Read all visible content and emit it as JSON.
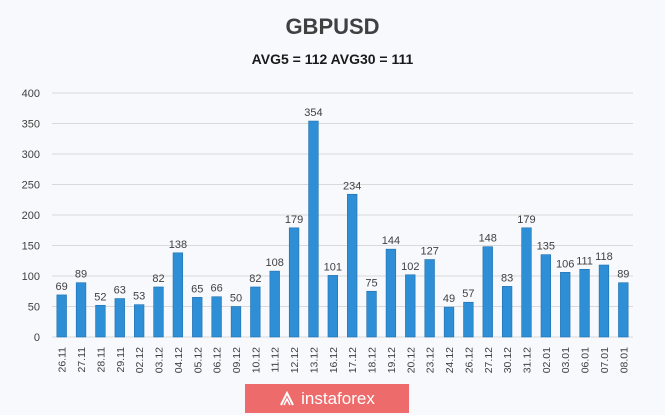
{
  "chart_data": {
    "type": "bar",
    "title": "GBPUSD",
    "subtitle": "AVG5 = 112 AVG30 = 111",
    "categories": [
      "26.11",
      "27.11",
      "28.11",
      "29.11",
      "02.12",
      "03.12",
      "04.12",
      "05.12",
      "06.12",
      "09.12",
      "10.12",
      "11.12",
      "12.12",
      "13.12",
      "16.12",
      "17.12",
      "18.12",
      "19.12",
      "20.12",
      "23.12",
      "24.12",
      "26.12",
      "27.12",
      "30.12",
      "31.12",
      "02.01",
      "03.01",
      "06.01",
      "07.01",
      "08.01"
    ],
    "values": [
      69,
      89,
      52,
      63,
      53,
      82,
      138,
      65,
      66,
      50,
      82,
      108,
      179,
      354,
      101,
      234,
      75,
      144,
      102,
      127,
      49,
      57,
      148,
      83,
      179,
      135,
      106,
      111,
      118,
      89
    ],
    "ylim": [
      0,
      400
    ],
    "yticks": [
      0,
      50,
      100,
      150,
      200,
      250,
      300,
      350,
      400
    ],
    "grid": true,
    "data_labels": true,
    "colors": {
      "bar": "#2e8fd6",
      "bar_edge": "#1f6fae",
      "grid": "#d9d9d9",
      "label": "#404040"
    }
  },
  "watermark": {
    "text": "instaforex",
    "color": "#ee6b6b"
  }
}
